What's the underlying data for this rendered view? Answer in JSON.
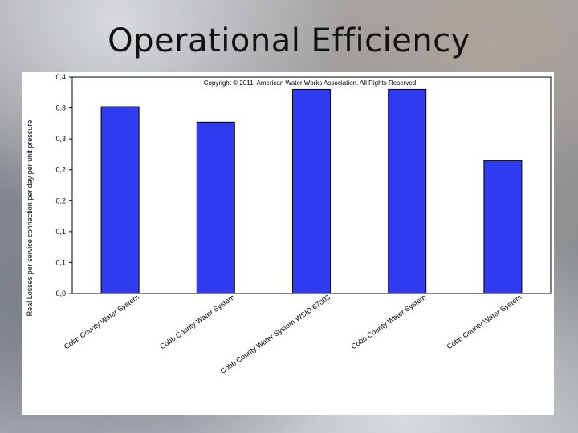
{
  "slide": {
    "title": "Operational Efficiency"
  },
  "chart_data": {
    "type": "bar",
    "title": "",
    "copyright": "Copyright © 2011. American Water Works Association. All Rights Reserved",
    "ylabel": "Real Losses per service connection per day per unit pressure",
    "xlabel": "",
    "ylim": [
      0,
      0.35
    ],
    "ytick_values": [
      0,
      0.05,
      0.1,
      0.15,
      0.2,
      0.25,
      0.3,
      0.35
    ],
    "ytick_labels": [
      "0,0",
      "0,1",
      "0,1",
      "0,2",
      "0,2",
      "0,3",
      "0,3",
      "0,4"
    ],
    "categories": [
      "Cobb County Water System",
      "Cobb County Water System",
      "Cobb County Water System WSID 67003",
      "Cobb County Water System",
      "Cobb County Water System"
    ],
    "values": [
      0.302,
      0.277,
      0.33,
      0.33,
      0.215
    ],
    "bar_color": "#2f3cf2",
    "grid": false,
    "legend": "none"
  }
}
